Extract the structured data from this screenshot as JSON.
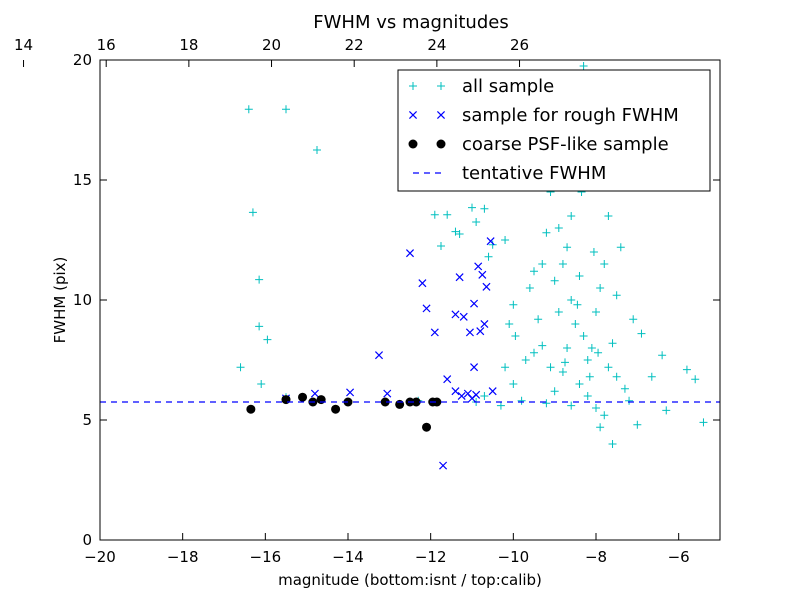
{
  "chart_data": {
    "type": "scatter",
    "title": "FWHM vs magnitudes",
    "xlabel": "magnitude (bottom:isnt / top:calib)",
    "ylabel": "FWHM (pix)",
    "xlim": [
      -20,
      -5
    ],
    "ylim": [
      0,
      20
    ],
    "x_ticks": [
      -20,
      -18,
      -16,
      -14,
      -12,
      -10,
      -8,
      -6
    ],
    "y_ticks": [
      0,
      5,
      10,
      15,
      20
    ],
    "top_axis": {
      "offset": 35.85,
      "ticks": [
        14,
        16,
        18,
        20,
        22,
        24,
        26
      ]
    },
    "grid": false,
    "legend_position": "top-right",
    "colors": {
      "all": "#00bfbf",
      "rough": "#0000ff",
      "coarse": "#000000",
      "fwhm": "#0000ff"
    },
    "fwhm_line_y": 5.75,
    "legend": [
      {
        "label": "all sample",
        "marker": "plus",
        "color": "#00bfbf"
      },
      {
        "label": "sample for rough FWHM",
        "marker": "x",
        "color": "#0000ff"
      },
      {
        "label": "coarse PSF-like sample",
        "marker": "dot",
        "color": "#000000"
      },
      {
        "label": "tentative FWHM",
        "marker": "dash",
        "color": "#0000ff"
      }
    ],
    "series": [
      {
        "name": "all sample",
        "points": [
          [
            -16.6,
            7.2
          ],
          [
            -16.4,
            17.95
          ],
          [
            -16.3,
            13.65
          ],
          [
            -16.15,
            10.85
          ],
          [
            -16.15,
            8.9
          ],
          [
            -16.1,
            6.5
          ],
          [
            -15.95,
            8.35
          ],
          [
            -15.5,
            17.95
          ],
          [
            -15.5,
            5.95
          ],
          [
            -14.75,
            16.25
          ],
          [
            -12.7,
            17.8
          ],
          [
            -12.3,
            5.8
          ],
          [
            -11.9,
            13.55
          ],
          [
            -11.75,
            12.25
          ],
          [
            -11.6,
            13.55
          ],
          [
            -11.4,
            12.85
          ],
          [
            -11.3,
            12.75
          ],
          [
            -11.0,
            13.85
          ],
          [
            -10.9,
            13.25
          ],
          [
            -10.7,
            13.8
          ],
          [
            -10.6,
            11.8
          ],
          [
            -10.5,
            12.3
          ],
          [
            -10.45,
            14.8
          ],
          [
            -10.2,
            12.5
          ],
          [
            -10.1,
            9.0
          ],
          [
            -10.0,
            9.8
          ],
          [
            -9.95,
            8.5
          ],
          [
            -9.6,
            10.5
          ],
          [
            -9.5,
            7.8
          ],
          [
            -9.3,
            11.5
          ],
          [
            -9.1,
            14.5
          ],
          [
            -8.9,
            13.0
          ],
          [
            -8.75,
            16.5
          ],
          [
            -8.7,
            12.2
          ],
          [
            -8.5,
            18.5
          ],
          [
            -8.3,
            19.75
          ],
          [
            -8.1,
            17.4
          ],
          [
            -7.9,
            16.1
          ],
          [
            -7.7,
            13.5
          ],
          [
            -7.4,
            12.2
          ],
          [
            -7.1,
            9.2
          ],
          [
            -6.9,
            8.6
          ],
          [
            -6.65,
            6.8
          ],
          [
            -6.4,
            7.7
          ],
          [
            -6.3,
            5.4
          ],
          [
            -5.8,
            7.1
          ],
          [
            -5.6,
            6.7
          ],
          [
            -5.4,
            4.9
          ],
          [
            -7.0,
            4.8
          ],
          [
            -7.6,
            4.0
          ],
          [
            -7.9,
            4.7
          ],
          [
            -8.6,
            5.6
          ],
          [
            -9.2,
            5.7
          ],
          [
            -9.8,
            5.8
          ],
          [
            -10.3,
            5.6
          ],
          [
            -10.7,
            6.0
          ],
          [
            -10.9,
            5.75
          ],
          [
            -9.0,
            6.2
          ],
          [
            -8.8,
            7.0
          ],
          [
            -8.4,
            6.5
          ],
          [
            -8.2,
            6.0
          ],
          [
            -8.0,
            5.5
          ],
          [
            -7.8,
            5.2
          ],
          [
            -8.5,
            9.0
          ],
          [
            -8.3,
            8.5
          ],
          [
            -8.6,
            10.0
          ],
          [
            -8.0,
            9.5
          ],
          [
            -8.4,
            11.0
          ],
          [
            -7.9,
            10.5
          ],
          [
            -8.7,
            8.0
          ],
          [
            -8.9,
            9.5
          ],
          [
            -8.1,
            8.0
          ],
          [
            -8.2,
            7.5
          ],
          [
            -7.7,
            7.2
          ],
          [
            -7.6,
            8.2
          ],
          [
            -8.8,
            11.5
          ],
          [
            -9.0,
            10.8
          ],
          [
            -9.4,
            9.2
          ],
          [
            -9.3,
            8.1
          ],
          [
            -7.5,
            6.8
          ],
          [
            -7.3,
            6.3
          ],
          [
            -7.2,
            5.8
          ],
          [
            -8.05,
            12.0
          ],
          [
            -8.6,
            13.5
          ],
          [
            -9.2,
            12.8
          ],
          [
            -9.5,
            11.2
          ],
          [
            -7.8,
            11.5
          ],
          [
            -7.5,
            10.2
          ],
          [
            -8.35,
            14.5
          ],
          [
            -8.45,
            9.8
          ],
          [
            -8.15,
            6.8
          ],
          [
            -7.95,
            7.8
          ],
          [
            -8.75,
            7.4
          ],
          [
            -9.1,
            7.2
          ],
          [
            -9.7,
            7.5
          ],
          [
            -10.0,
            6.5
          ],
          [
            -10.2,
            7.2
          ]
        ]
      },
      {
        "name": "sample for rough FWHM",
        "points": [
          [
            -15.5,
            5.9
          ],
          [
            -14.8,
            6.1
          ],
          [
            -13.95,
            6.15
          ],
          [
            -13.25,
            7.7
          ],
          [
            -13.05,
            6.1
          ],
          [
            -12.5,
            11.95
          ],
          [
            -12.2,
            10.7
          ],
          [
            -12.1,
            9.65
          ],
          [
            -11.9,
            8.65
          ],
          [
            -11.6,
            6.7
          ],
          [
            -11.4,
            9.4
          ],
          [
            -11.3,
            10.95
          ],
          [
            -11.2,
            9.3
          ],
          [
            -11.05,
            8.65
          ],
          [
            -10.95,
            9.85
          ],
          [
            -10.85,
            11.4
          ],
          [
            -10.8,
            8.7
          ],
          [
            -10.75,
            11.05
          ],
          [
            -10.65,
            10.55
          ],
          [
            -10.55,
            12.45
          ],
          [
            -10.5,
            6.2
          ],
          [
            -11.7,
            3.1
          ],
          [
            -11.0,
            5.9
          ],
          [
            -11.1,
            6.1
          ],
          [
            -11.25,
            6.0
          ],
          [
            -11.4,
            6.2
          ],
          [
            -10.9,
            6.05
          ],
          [
            -10.95,
            7.2
          ],
          [
            -10.7,
            9.0
          ]
        ]
      },
      {
        "name": "coarse PSF-like sample",
        "points": [
          [
            -16.35,
            5.45
          ],
          [
            -15.5,
            5.85
          ],
          [
            -15.1,
            5.95
          ],
          [
            -14.85,
            5.75
          ],
          [
            -14.65,
            5.85
          ],
          [
            -14.3,
            5.45
          ],
          [
            -14.0,
            5.75
          ],
          [
            -13.1,
            5.75
          ],
          [
            -12.75,
            5.65
          ],
          [
            -12.5,
            5.75
          ],
          [
            -12.35,
            5.75
          ],
          [
            -12.1,
            4.7
          ],
          [
            -11.95,
            5.75
          ],
          [
            -11.85,
            5.75
          ]
        ]
      }
    ]
  }
}
